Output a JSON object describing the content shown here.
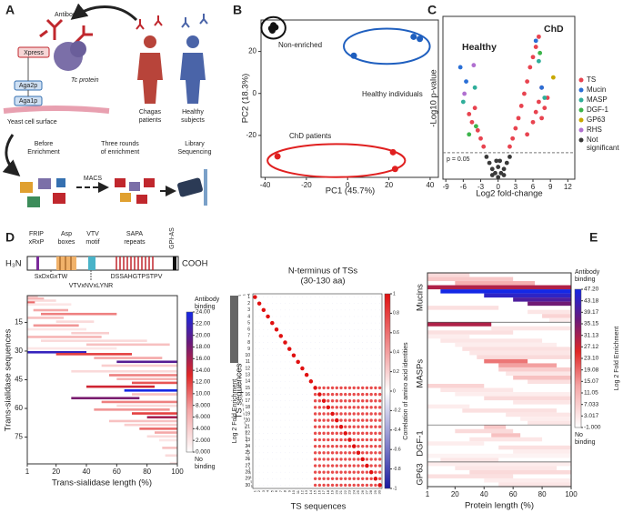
{
  "panel_labels": [
    "A",
    "B",
    "C",
    "D",
    "E"
  ],
  "panel_a": {
    "antibodies": "Antibodies",
    "xpress": "Xpress",
    "protein": "Tc protein",
    "aga2p": "Aga2p",
    "aga1p": "Aga1p",
    "surface": "Yeast cell surface",
    "chagas": [
      "Chagas",
      "patients"
    ],
    "healthy": [
      "Healthy",
      "subjects"
    ],
    "before": [
      "Before",
      "Enrichment"
    ],
    "rounds": [
      "Three rounds",
      "of enrichment"
    ],
    "library": [
      "Library",
      "Sequencing"
    ],
    "macs": "MACS"
  },
  "domain": {
    "frip": [
      "FRIP",
      "xRxP"
    ],
    "asp": [
      "Asp",
      "boxes"
    ],
    "vtv": [
      "VTV",
      "motif"
    ],
    "sapa": [
      "SAPA",
      "repeats"
    ],
    "gpi": "GPI-AS",
    "n_term": "H₃N",
    "c_term": "COOH",
    "motifs": [
      "SxDxGxTW",
      "VTVxNVxLYNR",
      "DSSAHGTPSTPV"
    ]
  },
  "chart_data": [
    {
      "type": "scatter",
      "xlabel": "PC1 (45.7%)",
      "ylabel": "PC2 (18.3%)",
      "xlim": [
        -42,
        44
      ],
      "xticks": [
        -40,
        -20,
        0,
        20,
        40
      ],
      "ylim": [
        -40,
        35
      ],
      "yticks": [
        -20,
        0,
        20
      ],
      "series": [
        {
          "name": "Non-enriched",
          "color": "#111111",
          "x": [
            -37,
            -36,
            -35,
            -36.5
          ],
          "y": [
            31,
            32.5,
            31.5,
            30
          ]
        },
        {
          "name": "Healthy individuals",
          "color": "#1f5fbf",
          "x": [
            3,
            32,
            35
          ],
          "y": [
            18,
            27,
            26
          ]
        },
        {
          "name": "ChD patients",
          "color": "#e02020",
          "x": [
            -34,
            22,
            23
          ],
          "y": [
            -30,
            -28,
            -36
          ]
        }
      ]
    },
    {
      "type": "scatter",
      "xlabel": "Log2 fold-change",
      "ylabel": "-Log10 p-value",
      "xlim": [
        -9.5,
        13.2
      ],
      "xticks": [
        -9,
        -6,
        -3,
        0,
        3,
        6,
        9,
        12
      ],
      "ylim": [
        0,
        8
      ],
      "threshold": {
        "value": 1.3,
        "label": "p = 0.05"
      },
      "annotations": [
        "Healthy",
        "ChD"
      ],
      "series": [
        {
          "name": "TS",
          "color": "#e8434f",
          "x": [
            -5,
            -4.5,
            -4,
            -3.5,
            -3,
            -2.5,
            2,
            2.5,
            3,
            3.5,
            4,
            4.5,
            5,
            5.5,
            6,
            6.5,
            7,
            7.5,
            8,
            8.5,
            5,
            6,
            6.5,
            7,
            7.5
          ],
          "y": [
            3.2,
            2.8,
            3.5,
            2.4,
            2,
            1.6,
            1.6,
            2,
            2.5,
            3,
            3.6,
            4.2,
            4.8,
            5.5,
            6,
            6.5,
            7,
            3,
            3.5,
            4,
            2.2,
            2.8,
            3.3,
            3.8,
            4.5
          ]
        },
        {
          "name": "Mucin",
          "color": "#2a6fd6",
          "x": [
            -6.5,
            -5.5,
            6.5,
            7.5
          ],
          "y": [
            5.5,
            4.8,
            6.8,
            4.5
          ]
        },
        {
          "name": "MASP",
          "color": "#2fae9a",
          "x": [
            -6,
            -4,
            7,
            8
          ],
          "y": [
            3.8,
            4.5,
            5.8,
            4
          ]
        },
        {
          "name": "DGF-1",
          "color": "#3cb44b",
          "x": [
            -5,
            -3.8,
            7.2
          ],
          "y": [
            2.2,
            2.6,
            6.2
          ]
        },
        {
          "name": "GP63",
          "color": "#c8a800",
          "x": [
            9.5
          ],
          "y": [
            5
          ]
        },
        {
          "name": "RHS",
          "color": "#b070d0",
          "x": [
            -5.8,
            -4.2
          ],
          "y": [
            4.2,
            5.6
          ]
        },
        {
          "name": "Not significant",
          "color": "#3a3a3a",
          "x": [
            -2,
            -1.5,
            -1,
            -0.5,
            0,
            0.5,
            1,
            1.5,
            2,
            -1,
            0,
            1,
            -0.3,
            0.3
          ],
          "y": [
            1.1,
            0.8,
            0.5,
            0.3,
            0.1,
            0.3,
            0.5,
            0.8,
            1.1,
            0.2,
            0.6,
            0.2,
            0.9,
            0.9
          ]
        }
      ]
    },
    {
      "type": "heatmap",
      "xlabel": "Trans-sialidase length (%)",
      "ylabel": "Trans-sialidase sequences",
      "xlim": [
        1,
        100
      ],
      "xticks": [
        1,
        20,
        40,
        60,
        80,
        100
      ],
      "ylim": [
        1,
        88
      ],
      "yticks": [
        15,
        30,
        45,
        60,
        75
      ],
      "colorbar": {
        "label": "Log 2 Fold Enrichment",
        "high": "Antibody binding",
        "low": "No binding",
        "ticks": [
          {
            "value": 0,
            "label": "0.000"
          },
          {
            "value": 2,
            "label": "2.000"
          },
          {
            "value": 4,
            "label": "4.000"
          },
          {
            "value": 6,
            "label": "6.000"
          },
          {
            "value": 8,
            "label": "8.000"
          },
          {
            "value": 10,
            "label": "10.00"
          },
          {
            "value": 12,
            "label": "12.00"
          },
          {
            "value": 14,
            "label": "14.00"
          },
          {
            "value": 16,
            "label": "16.00"
          },
          {
            "value": 18,
            "label": "18.00"
          },
          {
            "value": 20,
            "label": "20.00"
          },
          {
            "value": 22,
            "label": "22.00"
          },
          {
            "value": 24,
            "label": "24.00"
          }
        ]
      },
      "rows": [
        [
          1,
          1,
          8,
          4
        ],
        [
          2,
          1,
          12,
          6
        ],
        [
          3,
          1,
          20,
          3
        ],
        [
          4,
          1,
          6,
          10
        ],
        [
          5,
          1,
          30,
          2
        ],
        [
          8,
          5,
          28,
          7
        ],
        [
          10,
          10,
          60,
          9
        ],
        [
          12,
          1,
          25,
          5
        ],
        [
          14,
          20,
          45,
          3
        ],
        [
          16,
          5,
          35,
          8
        ],
        [
          18,
          1,
          40,
          2
        ],
        [
          20,
          30,
          55,
          4
        ],
        [
          22,
          1,
          50,
          6
        ],
        [
          24,
          10,
          80,
          3
        ],
        [
          26,
          40,
          95,
          5
        ],
        [
          28,
          1,
          60,
          2
        ],
        [
          30,
          1,
          40,
          22
        ],
        [
          31,
          20,
          70,
          12
        ],
        [
          33,
          45,
          90,
          7
        ],
        [
          35,
          60,
          100,
          20
        ],
        [
          37,
          50,
          100,
          4
        ],
        [
          40,
          30,
          100,
          3
        ],
        [
          42,
          55,
          100,
          9
        ],
        [
          44,
          60,
          100,
          6
        ],
        [
          46,
          70,
          100,
          11
        ],
        [
          48,
          40,
          85,
          14
        ],
        [
          50,
          65,
          100,
          24
        ],
        [
          52,
          70,
          100,
          5
        ],
        [
          54,
          30,
          75,
          18
        ],
        [
          56,
          50,
          100,
          9
        ],
        [
          58,
          60,
          100,
          3
        ],
        [
          60,
          45,
          95,
          8
        ],
        [
          62,
          70,
          100,
          12
        ],
        [
          64,
          80,
          100,
          16
        ],
        [
          66,
          55,
          100,
          5
        ],
        [
          68,
          65,
          100,
          4
        ],
        [
          70,
          75,
          100,
          10
        ],
        [
          72,
          85,
          100,
          7
        ],
        [
          74,
          80,
          100,
          3
        ],
        [
          76,
          88,
          100,
          2
        ],
        [
          80,
          90,
          100,
          5
        ],
        [
          84,
          92,
          100,
          3
        ],
        [
          88,
          95,
          100,
          2
        ]
      ]
    },
    {
      "type": "correlation",
      "title": [
        "N-terminus of TSs",
        "(30-130 aa)"
      ],
      "xlabel": "TS sequences",
      "ylabel": "TS sequences",
      "labels": [
        1,
        2,
        3,
        4,
        5,
        6,
        7,
        8,
        9,
        10,
        11,
        12,
        13,
        14,
        15,
        16,
        17,
        18,
        19,
        20,
        21,
        22,
        23,
        24,
        25,
        26,
        27,
        28,
        29,
        30
      ],
      "diagonal": 1,
      "background": -0.15,
      "blocks": [
        [
          15,
          30,
          0.75
        ]
      ],
      "colorbar": {
        "label": "Correlation of amino acid identities",
        "ticks": [
          -1,
          -0.8,
          -0.6,
          -0.4,
          -0.2,
          0,
          0.2,
          0.4,
          0.6,
          0.8,
          1
        ]
      }
    },
    {
      "type": "heatmap",
      "xlabel": "Protein length (%)",
      "xlim": [
        1,
        100
      ],
      "xticks": [
        1,
        20,
        40,
        60,
        80,
        100
      ],
      "colorbar": {
        "label": "Log 2 Fold Enrichment",
        "high": "Antibody binding",
        "low": "No binding",
        "ticks": [
          {
            "value": -1,
            "label": "-1.000"
          },
          3.017,
          7.033,
          11.05,
          15.07,
          19.08,
          {
            "value": 23.1,
            "label": "23.10"
          },
          27.12,
          31.13,
          35.15,
          39.17,
          43.18,
          {
            "value": 47.2,
            "label": "47.20"
          }
        ]
      },
      "groups": [
        {
          "name": "Mucins",
          "rows": [
            [
              1,
              1,
              30,
              5
            ],
            [
              2,
              1,
              60,
              8
            ],
            [
              3,
              20,
              75,
              12
            ],
            [
              4,
              1,
              100,
              30
            ],
            [
              5,
              10,
              100,
              47.2
            ],
            [
              6,
              40,
              100,
              44
            ],
            [
              7,
              60,
              100,
              40
            ],
            [
              8,
              70,
              100,
              36
            ],
            [
              9,
              1,
              50,
              4
            ],
            [
              10,
              70,
              100,
              3
            ],
            [
              11,
              80,
              100,
              6
            ],
            [
              12,
              85,
              100,
              2
            ]
          ]
        },
        {
          "name": "MASPs",
          "rows": [
            [
              13,
              1,
              45,
              30
            ],
            [
              14,
              45,
              100,
              3
            ],
            [
              15,
              1,
              60,
              4
            ],
            [
              16,
              1,
              30,
              2
            ],
            [
              17,
              10,
              80,
              3
            ],
            [
              18,
              20,
              90,
              2
            ],
            [
              19,
              25,
              100,
              4
            ],
            [
              20,
              30,
              100,
              3
            ],
            [
              21,
              35,
              100,
              5
            ],
            [
              22,
              40,
              70,
              18
            ],
            [
              23,
              50,
              90,
              14
            ],
            [
              24,
              50,
              100,
              7
            ],
            [
              25,
              55,
              100,
              3
            ],
            [
              26,
              60,
              100,
              9
            ],
            [
              27,
              70,
              100,
              4
            ],
            [
              28,
              1,
              40,
              6
            ],
            [
              29,
              10,
              60,
              3
            ],
            [
              30,
              20,
              100,
              2
            ],
            [
              31,
              40,
              100,
              5
            ],
            [
              32,
              60,
              100,
              3
            ],
            [
              33,
              1,
              30,
              2
            ],
            [
              34,
              25,
              90,
              4
            ],
            [
              35,
              55,
              100,
              3
            ],
            [
              36,
              65,
              100,
              2
            ],
            [
              37,
              70,
              100,
              3
            ]
          ]
        },
        {
          "name": "DGF-1",
          "rows": [
            [
              38,
              40,
              55,
              8
            ],
            [
              39,
              20,
              60,
              5
            ],
            [
              40,
              45,
              65,
              9
            ],
            [
              41,
              30,
              80,
              3
            ],
            [
              42,
              1,
              40,
              2
            ],
            [
              43,
              50,
              100,
              4
            ],
            [
              44,
              60,
              100,
              2
            ],
            [
              45,
              1,
              100,
              1
            ],
            [
              46,
              10,
              50,
              3
            ]
          ]
        },
        {
          "name": "GP63",
          "rows": [
            [
              47,
              1,
              100,
              2
            ],
            [
              48,
              20,
              90,
              3
            ],
            [
              49,
              30,
              100,
              5
            ],
            [
              50,
              1,
              60,
              4
            ],
            [
              51,
              40,
              100,
              2
            ],
            [
              52,
              50,
              100,
              3
            ]
          ]
        }
      ]
    }
  ]
}
